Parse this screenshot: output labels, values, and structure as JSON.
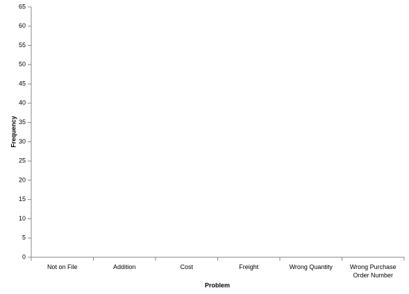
{
  "chart_data": {
    "type": "bar",
    "x_label": "Problem",
    "y_label": "Frequency",
    "categories": [
      "Not on File",
      "Addition",
      "Cost",
      "Freight",
      "Wrong Quantity",
      "Wrong Purchase Order Number"
    ],
    "ylim": [
      0,
      65
    ],
    "yticks": [
      0,
      5,
      10,
      15,
      20,
      25,
      30,
      35,
      40,
      45,
      50,
      55,
      60,
      65
    ],
    "color": "#4472c4"
  }
}
